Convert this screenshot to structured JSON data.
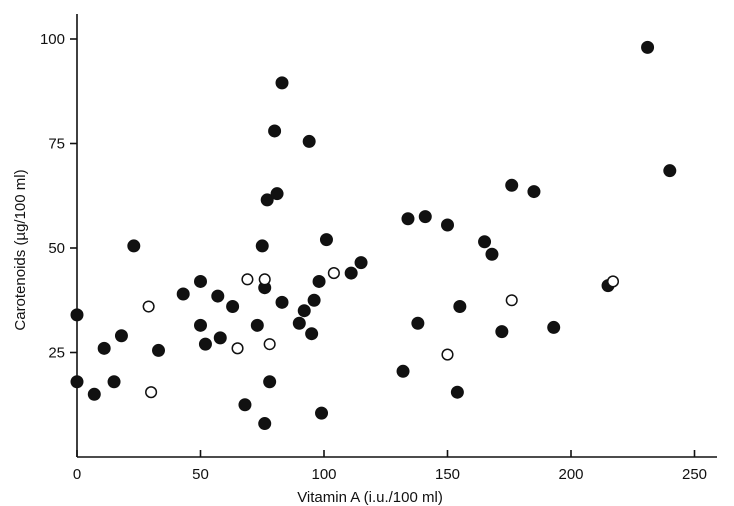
{
  "chart_data": {
    "type": "scatter",
    "xlabel": "Vitamin A (i.u./100 ml)",
    "ylabel": "Carotenoids (µg/100 ml)",
    "xlim": [
      0,
      270
    ],
    "ylim": [
      0,
      105
    ],
    "xticks": [
      "0",
      "50",
      "100",
      "150",
      "200",
      "250"
    ],
    "xtick_values": [
      0,
      50,
      100,
      150,
      200,
      250
    ],
    "yticks": [
      "25",
      "50",
      "75",
      "100"
    ],
    "ytick_values": [
      25,
      50,
      75,
      100
    ],
    "grid": false,
    "series": [
      {
        "marker": "filled-circle",
        "color": "#111111",
        "points": [
          [
            0,
            34
          ],
          [
            0,
            18
          ],
          [
            7,
            15
          ],
          [
            11,
            26
          ],
          [
            15,
            18
          ],
          [
            18,
            29
          ],
          [
            23,
            50.5
          ],
          [
            33,
            25.5
          ],
          [
            43,
            39
          ],
          [
            50,
            42
          ],
          [
            50,
            31.5
          ],
          [
            52,
            27
          ],
          [
            57,
            38.5
          ],
          [
            58,
            28.5
          ],
          [
            63,
            36
          ],
          [
            68,
            12.5
          ],
          [
            73,
            31.5
          ],
          [
            75,
            50.5
          ],
          [
            76,
            40.5
          ],
          [
            76,
            8
          ],
          [
            77,
            61.5
          ],
          [
            78,
            18
          ],
          [
            80,
            78
          ],
          [
            81,
            63
          ],
          [
            83,
            89.5
          ],
          [
            83,
            37
          ],
          [
            90,
            32
          ],
          [
            92,
            35
          ],
          [
            94,
            75.5
          ],
          [
            95,
            29.5
          ],
          [
            96,
            37.5
          ],
          [
            98,
            42
          ],
          [
            99,
            10.5
          ],
          [
            101,
            52
          ],
          [
            111,
            44
          ],
          [
            115,
            46.5
          ],
          [
            132,
            20.5
          ],
          [
            134,
            57
          ],
          [
            138,
            32
          ],
          [
            141,
            57.5
          ],
          [
            150,
            55.5
          ],
          [
            154,
            15.5
          ],
          [
            155,
            36
          ],
          [
            165,
            51.5
          ],
          [
            168,
            48.5
          ],
          [
            172,
            30
          ],
          [
            176,
            65
          ],
          [
            185,
            63.5
          ],
          [
            193,
            31
          ],
          [
            215,
            41
          ],
          [
            231,
            98
          ],
          [
            240,
            68.5
          ]
        ]
      },
      {
        "marker": "open-circle",
        "color": "#111111",
        "points": [
          [
            29,
            36
          ],
          [
            30,
            15.5
          ],
          [
            65,
            26
          ],
          [
            69,
            42.5
          ],
          [
            76,
            42.5
          ],
          [
            78,
            27
          ],
          [
            104,
            44
          ],
          [
            150,
            24.5
          ],
          [
            176,
            37.5
          ],
          [
            217,
            42
          ]
        ]
      }
    ]
  }
}
